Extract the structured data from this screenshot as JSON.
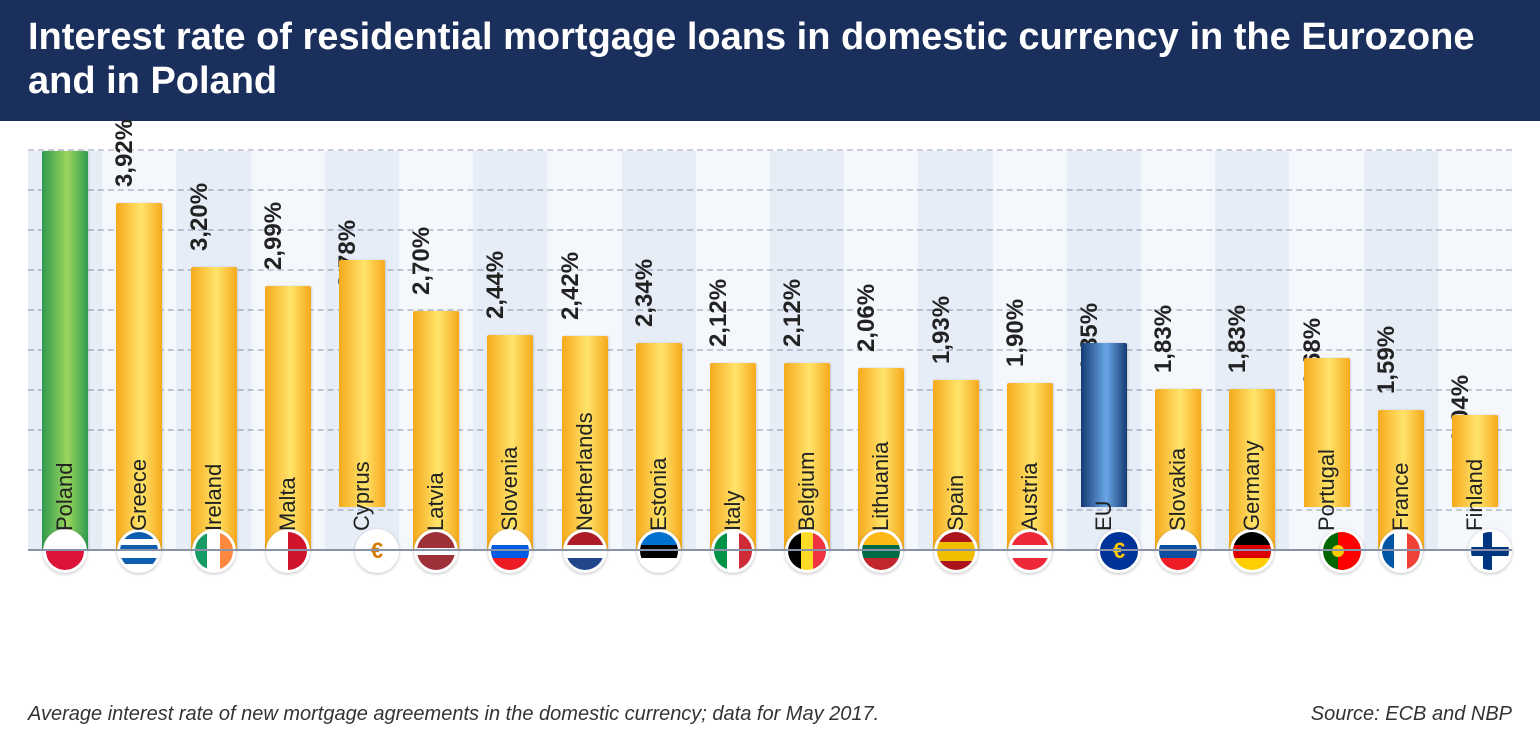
{
  "title": "Interest rate of residential mortgage loans in domestic currency in the Eurozone and in Poland",
  "footnote": "Average interest rate of new mortgage agreements in the domestic currency; data for May 2017.",
  "source": "Source: ECB and NBP",
  "chart": {
    "type": "bar",
    "y_max": 4.5,
    "gridline_step_approx": 0.45,
    "gridline_count": 10,
    "stripe_colors": [
      "#e6edf7",
      "#f4f7fc"
    ],
    "gridline_color": "rgba(40,60,100,0.25)",
    "baseline_color": "#8892a8",
    "value_suffix": "%",
    "value_decimal_sep": ",",
    "bar_gradients": {
      "green": {
        "from": "#2e9b4f",
        "to": "#9bd65d"
      },
      "yellow": {
        "from": "#f6a91c",
        "to": "#ffe46b"
      },
      "blue": {
        "from": "#153b73",
        "to": "#6aa7e8"
      }
    },
    "label_fontsize": 22,
    "value_fontsize": 24,
    "flag_circle_border": "#ffffff",
    "series": [
      {
        "country": "Poland",
        "value": 4.5,
        "color": "green",
        "value_in_bar": true,
        "flag": {
          "type": "bi-h",
          "colors": [
            "#ffffff",
            "#dc143c"
          ]
        }
      },
      {
        "country": "Greece",
        "value": 3.92,
        "color": "yellow",
        "flag": {
          "type": "stripes5",
          "colors": [
            "#0d5eaf",
            "#ffffff"
          ]
        }
      },
      {
        "country": "Ireland",
        "value": 3.2,
        "color": "yellow",
        "flag": {
          "type": "tri-v",
          "colors": [
            "#169b62",
            "#ffffff",
            "#ff883e"
          ]
        }
      },
      {
        "country": "Malta",
        "value": 2.99,
        "color": "yellow",
        "flag": {
          "type": "bi-v",
          "colors": [
            "#ffffff",
            "#cf142b"
          ]
        }
      },
      {
        "country": "Cyprus",
        "value": 2.78,
        "color": "yellow",
        "flag": {
          "type": "solid",
          "colors": [
            "#ffffff"
          ],
          "accent": "#d57800"
        }
      },
      {
        "country": "Latvia",
        "value": 2.7,
        "color": "yellow",
        "flag": {
          "type": "tri-h-thin",
          "colors": [
            "#9e3039",
            "#ffffff",
            "#9e3039"
          ]
        }
      },
      {
        "country": "Slovenia",
        "value": 2.44,
        "color": "yellow",
        "flag": {
          "type": "tri-h",
          "colors": [
            "#ffffff",
            "#005ce5",
            "#ed1c24"
          ]
        }
      },
      {
        "country": "Netherlands",
        "value": 2.42,
        "color": "yellow",
        "flag": {
          "type": "tri-h",
          "colors": [
            "#ae1c28",
            "#ffffff",
            "#21468b"
          ]
        }
      },
      {
        "country": "Estonia",
        "value": 2.34,
        "color": "yellow",
        "flag": {
          "type": "tri-h",
          "colors": [
            "#0072ce",
            "#000000",
            "#ffffff"
          ]
        }
      },
      {
        "country": "Italy",
        "value": 2.12,
        "color": "yellow",
        "flag": {
          "type": "tri-v",
          "colors": [
            "#009246",
            "#ffffff",
            "#ce2b37"
          ]
        }
      },
      {
        "country": "Belgium",
        "value": 2.12,
        "color": "yellow",
        "flag": {
          "type": "tri-v",
          "colors": [
            "#000000",
            "#fdda24",
            "#ef3340"
          ]
        }
      },
      {
        "country": "Lithuania",
        "value": 2.06,
        "color": "yellow",
        "flag": {
          "type": "tri-h",
          "colors": [
            "#fdb913",
            "#006a44",
            "#c1272d"
          ]
        }
      },
      {
        "country": "Spain",
        "value": 1.93,
        "color": "yellow",
        "flag": {
          "type": "tri-h-thick",
          "colors": [
            "#aa151b",
            "#f1bf00",
            "#aa151b"
          ]
        }
      },
      {
        "country": "Austria",
        "value": 1.9,
        "color": "yellow",
        "flag": {
          "type": "tri-h",
          "colors": [
            "#ed2939",
            "#ffffff",
            "#ed2939"
          ]
        }
      },
      {
        "country": "EU",
        "value": 1.85,
        "color": "blue",
        "flag": {
          "type": "solid",
          "colors": [
            "#003399"
          ],
          "accent": "#ffcc00"
        }
      },
      {
        "country": "Slovakia",
        "value": 1.83,
        "color": "yellow",
        "flag": {
          "type": "tri-h",
          "colors": [
            "#ffffff",
            "#0b4ea2",
            "#ee1c25"
          ]
        }
      },
      {
        "country": "Germany",
        "value": 1.83,
        "color": "yellow",
        "flag": {
          "type": "tri-h",
          "colors": [
            "#000000",
            "#dd0000",
            "#ffce00"
          ]
        }
      },
      {
        "country": "Portugal",
        "value": 1.68,
        "color": "yellow",
        "flag": {
          "type": "bi-v-uneven",
          "colors": [
            "#006600",
            "#ff0000"
          ],
          "accent": "#ffcc00"
        }
      },
      {
        "country": "France",
        "value": 1.59,
        "color": "yellow",
        "flag": {
          "type": "tri-v",
          "colors": [
            "#0055a4",
            "#ffffff",
            "#ef4135"
          ]
        }
      },
      {
        "country": "Finland",
        "value": 1.04,
        "color": "yellow",
        "flag": {
          "type": "nordic",
          "colors": [
            "#ffffff",
            "#003580"
          ]
        }
      }
    ]
  }
}
